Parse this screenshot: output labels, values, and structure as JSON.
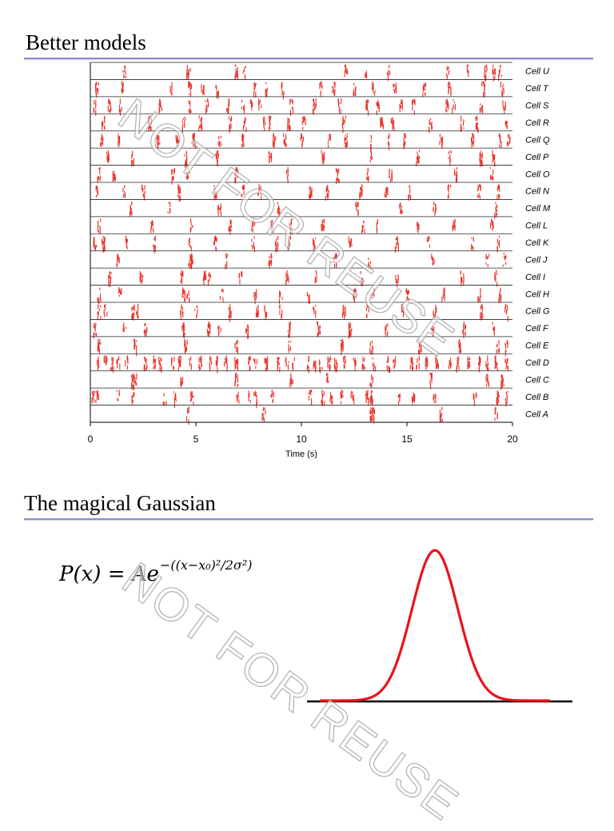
{
  "section1": {
    "title": "Better models"
  },
  "section2": {
    "title": "The magical Gaussian"
  },
  "equation": {
    "lhs": "P(x) = Ae",
    "exponent": "−((x−x₀)²/2σ²)"
  },
  "watermark": "NOT FOR REUSE",
  "colors": {
    "spike": "#e8332a",
    "rule": "#8a8ad0",
    "gaussian": "#e8141a"
  },
  "chart_data": [
    {
      "type": "scatter",
      "title": "",
      "xlabel": "Time (s)",
      "ylabel": "",
      "xlim": [
        0,
        20
      ],
      "xticks": [
        0,
        5,
        10,
        15,
        20
      ],
      "rows": [
        {
          "name": "Cell U",
          "events": [
            1.6,
            4.6,
            4.65,
            6.9,
            7.3,
            12.1,
            13.0,
            14.1,
            16.9,
            17.9,
            18.7,
            19.1,
            19.4
          ]
        },
        {
          "name": "Cell T",
          "events": [
            0.3,
            1.5,
            3.8,
            4.7,
            5.3,
            6.0,
            7.8,
            8.3,
            9.1,
            10.9,
            11.5,
            12.5,
            13.4,
            14.4,
            15.8,
            17.0,
            18.6,
            19.5
          ]
        },
        {
          "name": "Cell S",
          "events": [
            0.2,
            0.9,
            1.4,
            3.3,
            4.7,
            5.5,
            6.5,
            7.2,
            7.6,
            8.0,
            9.5,
            10.6,
            11.8,
            13.1,
            13.6,
            14.7,
            15.3,
            16.9,
            17.2,
            18.5,
            19.6
          ]
        },
        {
          "name": "Cell R",
          "events": [
            0.6,
            2.8,
            4.4,
            5.2,
            6.6,
            7.3,
            8.2,
            8.5,
            9.4,
            10.1,
            12.0,
            13.8,
            14.3,
            16.1,
            17.6,
            18.3,
            19.7
          ]
        },
        {
          "name": "Cell Q",
          "events": [
            0.5,
            1.3,
            3.2,
            4.1,
            4.9,
            6.1,
            7.2,
            8.7,
            9.2,
            10.0,
            11.3,
            12.1,
            13.3,
            14.1,
            14.9,
            16.6,
            18.1,
            19.4,
            19.8
          ]
        },
        {
          "name": "Cell P",
          "events": [
            0.8,
            2.0,
            4.5,
            6.0,
            8.5,
            11.0,
            13.3,
            15.5,
            17.0,
            18.5,
            19.1
          ]
        },
        {
          "name": "Cell O",
          "events": [
            0.4,
            1.1,
            3.9,
            4.6,
            6.9,
            9.3,
            11.7,
            13.1,
            14.2,
            17.3,
            19.0
          ]
        },
        {
          "name": "Cell N",
          "events": [
            0.3,
            1.6,
            2.5,
            4.2,
            5.9,
            7.2,
            8.0,
            10.4,
            11.2,
            12.8,
            14.0,
            15.1,
            17.0,
            18.4,
            19.3
          ]
        },
        {
          "name": "Cell M",
          "events": [
            1.9,
            3.7,
            6.1,
            8.9,
            12.6,
            14.7,
            16.3,
            19.2
          ]
        },
        {
          "name": "Cell L",
          "events": [
            0.4,
            2.9,
            4.8,
            6.6,
            7.7,
            8.6,
            9.5,
            11.0,
            12.9,
            13.6,
            15.5,
            17.2,
            19.0
          ]
        },
        {
          "name": "Cell K",
          "events": [
            0.2,
            0.6,
            1.7,
            3.0,
            4.7,
            5.9,
            7.7,
            8.8,
            9.4,
            10.6,
            12.3,
            14.5,
            16.0,
            18.1,
            19.3
          ]
        },
        {
          "name": "Cell J",
          "events": [
            1.3,
            4.7,
            4.8,
            6.4,
            8.5,
            11.6,
            13.2,
            16.2,
            18.8,
            19.6
          ]
        },
        {
          "name": "Cell I",
          "events": [
            0.9,
            2.4,
            4.3,
            5.4,
            5.6,
            7.1,
            9.3,
            10.7,
            12.8,
            14.5,
            17.6,
            19.2
          ]
        },
        {
          "name": "Cell H",
          "events": [
            0.4,
            1.4,
            4.4,
            4.6,
            6.2,
            7.8,
            9.0,
            10.3,
            12.5,
            13.4,
            15.0,
            16.7,
            18.4,
            19.4
          ]
        },
        {
          "name": "Cell G",
          "events": [
            0.4,
            0.7,
            2.0,
            2.2,
            4.3,
            5.0,
            6.6,
            7.9,
            8.3,
            9.0,
            10.6,
            12.0,
            13.1,
            14.8,
            16.3,
            18.5,
            19.7
          ]
        },
        {
          "name": "Cell F",
          "events": [
            0.2,
            1.6,
            2.6,
            4.4,
            5.6,
            6.1,
            7.4,
            9.4,
            10.8,
            12.3,
            14.0,
            16.2,
            17.7,
            19.1
          ]
        },
        {
          "name": "Cell E",
          "events": [
            0.4,
            2.1,
            4.5,
            6.9,
            9.4,
            11.9,
            13.3,
            15.6,
            17.5,
            19.3,
            19.7
          ]
        },
        {
          "name": "Cell D",
          "events": [
            0.3,
            0.7,
            1.0,
            1.3,
            1.7,
            2.6,
            3.0,
            3.3,
            3.9,
            4.2,
            4.7,
            5.2,
            5.7,
            6.0,
            6.4,
            6.9,
            7.5,
            7.8,
            8.3,
            8.9,
            9.3,
            9.6,
            10.3,
            10.6,
            10.9,
            11.3,
            11.6,
            12.0,
            12.5,
            12.9,
            13.4,
            14.1,
            14.4,
            15.2,
            15.5,
            15.9,
            16.4,
            17.0,
            17.4,
            17.9,
            18.4,
            18.8,
            19.2,
            19.7
          ]
        },
        {
          "name": "Cell C",
          "events": [
            2.0,
            2.1,
            4.3,
            6.9,
            9.5,
            11.2,
            13.3,
            16.1,
            18.8,
            19.5
          ]
        },
        {
          "name": "Cell B",
          "events": [
            0.1,
            0.3,
            1.3,
            2.0,
            3.5,
            4.0,
            4.8,
            7.0,
            7.5,
            7.8,
            8.6,
            10.4,
            11.0,
            11.4,
            11.9,
            12.4,
            13.1,
            13.3,
            14.6,
            15.3,
            16.3,
            18.2,
            19.3,
            19.7
          ]
        },
        {
          "name": "Cell A",
          "events": [
            4.6,
            8.2,
            13.3,
            13.4,
            16.6,
            19.2
          ]
        }
      ]
    },
    {
      "type": "line",
      "title": "",
      "xlabel": "",
      "ylabel": "",
      "function": "gaussian",
      "center": 0.5,
      "width": 0.1,
      "amplitude": 1.0
    }
  ]
}
